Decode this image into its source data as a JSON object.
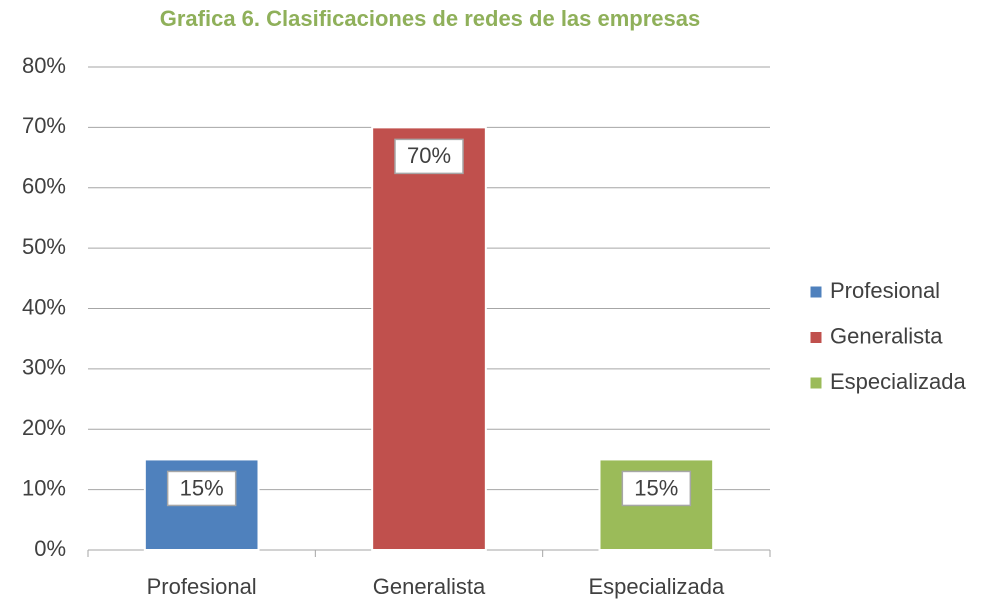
{
  "chart_data": {
    "type": "bar",
    "title": "Grafica 6. Clasificaciones de redes de las empresas",
    "categories": [
      "Profesional",
      "Generalista",
      "Especializada"
    ],
    "values": [
      15,
      70,
      15
    ],
    "value_labels": [
      "15%",
      "70%",
      "15%"
    ],
    "colors": [
      "#4f81bd",
      "#c0504d",
      "#9bbb59"
    ],
    "ylim": [
      0,
      80
    ],
    "yticks": [
      {
        "value": 0,
        "label": "0%"
      },
      {
        "value": 10,
        "label": "10%"
      },
      {
        "value": 20,
        "label": "20%"
      },
      {
        "value": 30,
        "label": "30%"
      },
      {
        "value": 40,
        "label": "40%"
      },
      {
        "value": 50,
        "label": "50%"
      },
      {
        "value": 60,
        "label": "60%"
      },
      {
        "value": 70,
        "label": "70%"
      },
      {
        "value": 80,
        "label": "80%"
      }
    ],
    "grid": true,
    "legend": "right"
  }
}
